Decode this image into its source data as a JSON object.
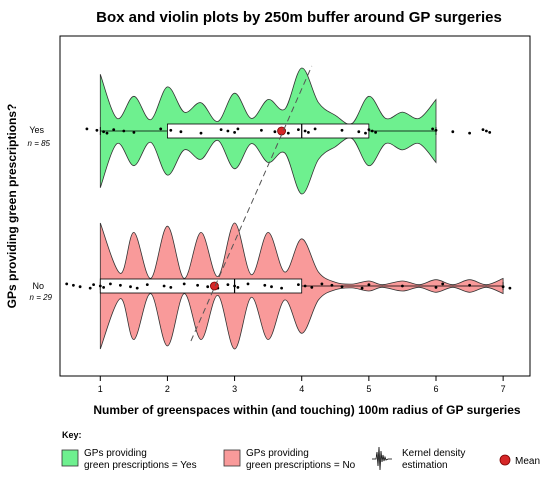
{
  "chart_data": {
    "type": "violin",
    "title": "Box and violin plots by 250m buffer around GP surgeries",
    "xlabel": "Number of greenspaces within (and touching) 100m radius of GP surgeries",
    "ylabel": "GPs providing green prescriptions?",
    "xticks": [
      "1",
      "2",
      "3",
      "4",
      "5",
      "6",
      "7"
    ],
    "xlim": [
      0.4,
      7.4
    ],
    "groups": [
      {
        "label": "Yes",
        "n_label": "n = 85",
        "color": "#6ef08f",
        "box": {
          "min": 1,
          "q1": 2,
          "median": 4,
          "q3": 5,
          "max": 6
        },
        "mean": 3.7,
        "kde": [
          [
            1,
            0.9
          ],
          [
            1.25,
            0.2
          ],
          [
            1.5,
            0.55
          ],
          [
            1.75,
            0.18
          ],
          [
            2,
            0.7
          ],
          [
            2.25,
            0.3
          ],
          [
            2.5,
            0.45
          ],
          [
            2.75,
            0.15
          ],
          [
            3,
            0.6
          ],
          [
            3.25,
            0.2
          ],
          [
            3.5,
            0.5
          ],
          [
            3.75,
            0.35
          ],
          [
            4,
            1.0
          ],
          [
            4.25,
            0.45
          ],
          [
            4.5,
            0.25
          ],
          [
            4.75,
            0.12
          ],
          [
            5,
            0.55
          ],
          [
            5.25,
            0.2
          ],
          [
            5.5,
            0.3
          ],
          [
            5.75,
            0.2
          ],
          [
            6,
            0.5
          ]
        ],
        "points": [
          0.8,
          0.95,
          1.05,
          1.1,
          1.2,
          1.35,
          1.5,
          1.9,
          2.05,
          2.2,
          2.5,
          2.8,
          2.9,
          3.0,
          3.05,
          3.4,
          3.6,
          3.8,
          3.95,
          4.05,
          4.1,
          4.2,
          4.6,
          4.85,
          4.95,
          5.0,
          5.05,
          5.1,
          5.95,
          6.0,
          6.25,
          6.5,
          6.7,
          6.75,
          6.8
        ]
      },
      {
        "label": "No",
        "n_label": "n = 29",
        "color": "#f99a9a",
        "box": {
          "min": 1,
          "q1": 1,
          "median": 3,
          "q3": 4,
          "max": 7
        },
        "mean": 2.7,
        "kde": [
          [
            1,
            1.0
          ],
          [
            1.3,
            0.2
          ],
          [
            1.5,
            0.85
          ],
          [
            1.75,
            0.12
          ],
          [
            2,
            0.95
          ],
          [
            2.25,
            0.12
          ],
          [
            2.5,
            0.85
          ],
          [
            2.75,
            0.15
          ],
          [
            3,
            1.0
          ],
          [
            3.25,
            0.18
          ],
          [
            3.5,
            0.85
          ],
          [
            3.75,
            0.22
          ],
          [
            4,
            0.75
          ],
          [
            4.25,
            0.22
          ],
          [
            4.5,
            0.06
          ],
          [
            4.75,
            0.03
          ],
          [
            5,
            0.08
          ],
          [
            5.2,
            0.02
          ],
          [
            5.5,
            0.08
          ],
          [
            5.75,
            0.02
          ],
          [
            6,
            0.1
          ],
          [
            6.25,
            0.02
          ],
          [
            6.5,
            0.1
          ],
          [
            6.75,
            0.02
          ],
          [
            7,
            0.12
          ]
        ],
        "points": [
          0.5,
          0.6,
          0.7,
          0.85,
          0.9,
          1.0,
          1.05,
          1.15,
          1.3,
          1.45,
          1.55,
          1.7,
          1.95,
          2.05,
          2.25,
          2.45,
          2.6,
          2.75,
          2.9,
          3.0,
          3.05,
          3.2,
          3.45,
          3.55,
          3.7,
          3.95,
          4.05,
          4.15,
          4.3,
          4.45,
          4.6,
          4.9,
          5.0,
          5.5,
          6.0,
          6.1,
          6.5,
          7.0,
          7.1
        ]
      }
    ],
    "trend_line": {
      "from": [
        2.35,
        "No"
      ],
      "to": [
        4.15,
        "Yes"
      ]
    }
  },
  "key": {
    "title": "Key:",
    "yes_line1": "GPs providing",
    "yes_line2": "green prescriptions = Yes",
    "no_line1": "GPs providing",
    "no_line2": "green prescriptions = No",
    "kde_line1": "Kernel density",
    "kde_line2": "estimation",
    "mean": "Mean"
  }
}
